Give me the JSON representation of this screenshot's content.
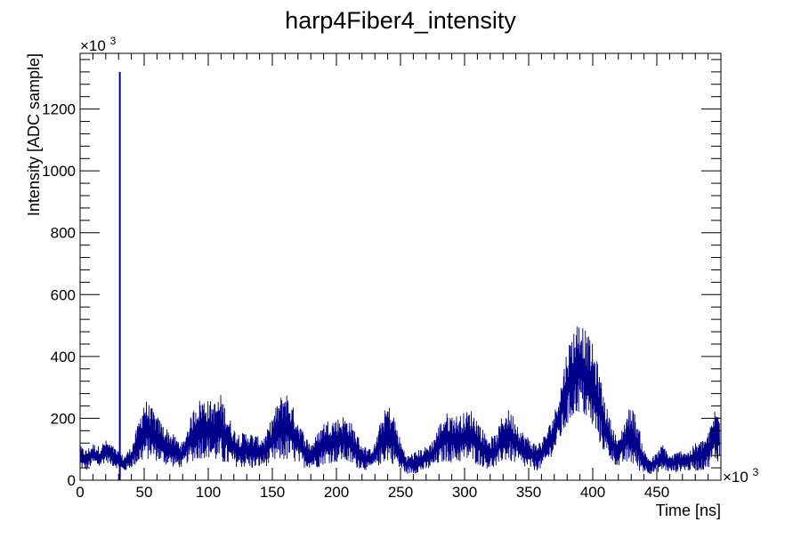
{
  "chart_data": {
    "type": "line",
    "title": "harp4Fiber4_intensity",
    "xlabel": "Time [ns]",
    "ylabel": "Intensity [ADC sample]",
    "x_multiplier": "×10",
    "x_multiplier_exp": "3",
    "y_multiplier": "×10",
    "y_multiplier_exp": "3",
    "xlim": [
      0,
      500
    ],
    "ylim": [
      0,
      1380
    ],
    "x_ticks": [
      0,
      50,
      100,
      150,
      200,
      250,
      300,
      350,
      400,
      450
    ],
    "x_tick_labels": [
      "0",
      "50",
      "100",
      "150",
      "200",
      "250",
      "300",
      "350",
      "400",
      "450"
    ],
    "y_ticks": [
      0,
      200,
      400,
      600,
      800,
      1000,
      1200
    ],
    "y_tick_labels": [
      "0",
      "200",
      "400",
      "600",
      "800",
      "1000",
      "1200"
    ],
    "grid": false,
    "line_color": "#00008b",
    "spike": {
      "x": 31,
      "y": 1320
    },
    "envelope": {
      "x": [
        0,
        5,
        10,
        15,
        20,
        25,
        28,
        31,
        34,
        40,
        45,
        50,
        55,
        60,
        65,
        70,
        75,
        80,
        85,
        90,
        95,
        100,
        105,
        110,
        115,
        120,
        125,
        130,
        135,
        140,
        145,
        150,
        155,
        160,
        165,
        170,
        175,
        180,
        185,
        190,
        195,
        200,
        205,
        210,
        215,
        220,
        225,
        230,
        235,
        240,
        245,
        250,
        255,
        260,
        265,
        270,
        275,
        280,
        285,
        290,
        295,
        300,
        305,
        310,
        315,
        320,
        325,
        330,
        335,
        340,
        345,
        350,
        355,
        360,
        365,
        370,
        375,
        380,
        385,
        390,
        395,
        400,
        405,
        410,
        415,
        420,
        425,
        430,
        435,
        440,
        445,
        450,
        455,
        460,
        465,
        470,
        475,
        480,
        485,
        490,
        495,
        499
      ],
      "upper": [
        110,
        100,
        120,
        110,
        130,
        115,
        100,
        90,
        80,
        110,
        180,
        270,
        240,
        210,
        180,
        160,
        140,
        120,
        190,
        250,
        270,
        260,
        255,
        280,
        220,
        170,
        150,
        160,
        150,
        140,
        150,
        210,
        260,
        300,
        250,
        200,
        150,
        120,
        150,
        190,
        200,
        200,
        210,
        200,
        160,
        120,
        100,
        120,
        200,
        250,
        210,
        130,
        80,
        90,
        100,
        110,
        130,
        180,
        220,
        215,
        210,
        220,
        230,
        200,
        160,
        140,
        150,
        220,
        230,
        200,
        160,
        140,
        120,
        130,
        170,
        220,
        310,
        430,
        490,
        530,
        480,
        440,
        360,
        250,
        180,
        130,
        200,
        250,
        190,
        100,
        70,
        90,
        120,
        80,
        90,
        100,
        95,
        120,
        130,
        150,
        230,
        230
      ],
      "lower": [
        40,
        30,
        50,
        40,
        60,
        45,
        40,
        30,
        25,
        40,
        50,
        60,
        70,
        60,
        50,
        45,
        40,
        40,
        60,
        60,
        70,
        70,
        60,
        50,
        45,
        45,
        40,
        40,
        35,
        40,
        45,
        50,
        60,
        60,
        60,
        50,
        40,
        40,
        40,
        50,
        55,
        55,
        60,
        50,
        40,
        35,
        30,
        40,
        50,
        60,
        50,
        30,
        20,
        20,
        25,
        30,
        40,
        50,
        60,
        55,
        55,
        60,
        60,
        50,
        40,
        35,
        40,
        60,
        60,
        50,
        40,
        35,
        30,
        35,
        60,
        90,
        130,
        170,
        200,
        220,
        190,
        160,
        120,
        80,
        60,
        40,
        50,
        50,
        30,
        25,
        20,
        25,
        30,
        25,
        25,
        30,
        30,
        30,
        30,
        40,
        60,
        60
      ]
    }
  }
}
